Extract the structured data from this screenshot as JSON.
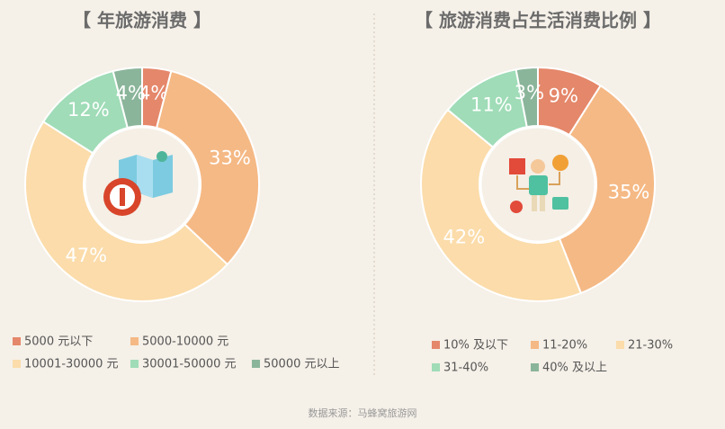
{
  "chart_data": [
    {
      "type": "pie",
      "title": "【 年旅游消费 】",
      "categories": [
        "5000 元以下",
        "5000-10000 元",
        "10001-30000 元",
        "30001-50000 元",
        "50000 元以上"
      ],
      "values": [
        4,
        33,
        47,
        12,
        4
      ],
      "value_labels": [
        "4%",
        "33%",
        "47%",
        "12%",
        "4%"
      ],
      "colors": [
        "#e5876a",
        "#f5b985",
        "#fbdcaa",
        "#9fdcb7",
        "#8ab59a"
      ]
    },
    {
      "type": "pie",
      "title": "【 旅游消费占生活消费比例 】",
      "categories": [
        "10% 及以下",
        "11-20%",
        "21-30%",
        "31-40%",
        "40% 及以上"
      ],
      "values": [
        9,
        35,
        42,
        11,
        3
      ],
      "value_labels": [
        "9%",
        "35%",
        "42%",
        "11%",
        "3%"
      ],
      "colors": [
        "#e5876a",
        "#f5b985",
        "#fbdcaa",
        "#9fdcb7",
        "#8ab59a"
      ]
    }
  ],
  "source": "数据来源：马蜂窝旅游网"
}
